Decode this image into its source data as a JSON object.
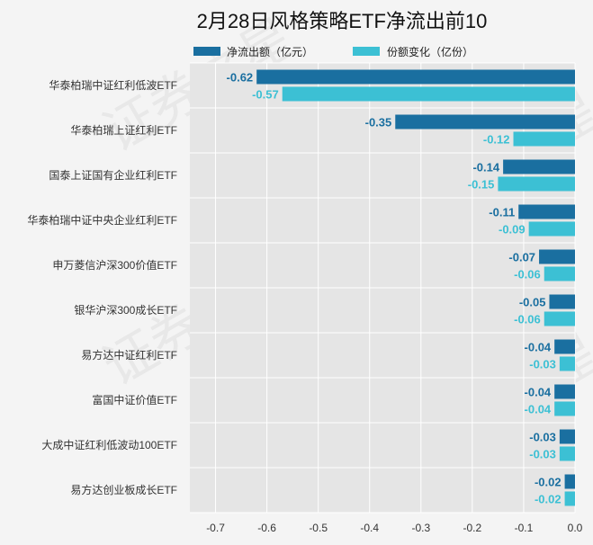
{
  "watermark": "证券之星",
  "legend": {
    "net_outflow_label": "净流出额（亿元）",
    "share_change_label": "份额变化（亿份）"
  },
  "colors": {
    "net_outflow": "#1a6fa0",
    "share_change": "#3cc0d4",
    "plot_background": "#e5e5e5",
    "page_background": "#f4f4f4",
    "grid": "#ffffff",
    "text": "#333333"
  },
  "chart_data": {
    "type": "bar",
    "orientation": "horizontal",
    "title": "2月28日风格策略ETF净流出前10",
    "categories": [
      "华泰柏瑞中证红利低波ETF",
      "华泰柏瑞上证红利ETF",
      "国泰上证国有企业红利ETF",
      "华泰柏瑞中证中央企业红利ETF",
      "申万菱信沪深300价值ETF",
      "银华沪深300成长ETF",
      "易方达中证红利ETF",
      "富国中证价值ETF",
      "大成中证红利低波动100ETF",
      "易方达创业板成长ETF"
    ],
    "series": [
      {
        "name": "净流出额（亿元）",
        "values": [
          -0.62,
          -0.35,
          -0.14,
          -0.11,
          -0.07,
          -0.05,
          -0.04,
          -0.04,
          -0.03,
          -0.02
        ],
        "labels": [
          "-0.62",
          "-0.35",
          "-0.14",
          "-0.11",
          "-0.07",
          "-0.05",
          "-0.04",
          "-0.04",
          "-0.03",
          "-0.02"
        ]
      },
      {
        "name": "份额变化（亿份）",
        "values": [
          -0.57,
          -0.12,
          -0.15,
          -0.09,
          -0.06,
          -0.06,
          -0.03,
          -0.04,
          -0.03,
          -0.02
        ],
        "labels": [
          "-0.57",
          "-0.12",
          "-0.15",
          "-0.09",
          "-0.06",
          "-0.06",
          "-0.03",
          "-0.04",
          "-0.03",
          "-0.02"
        ]
      }
    ],
    "xlim": [
      -0.75,
      0.0
    ],
    "xticks": [
      -0.7,
      -0.6,
      -0.5,
      -0.4,
      -0.3,
      -0.2,
      -0.1,
      0.0
    ],
    "xtick_labels": [
      "-0.7",
      "-0.6",
      "-0.5",
      "-0.4",
      "-0.3",
      "-0.2",
      "-0.1",
      "0.0"
    ],
    "grid": true,
    "legend_position": "top-center"
  }
}
